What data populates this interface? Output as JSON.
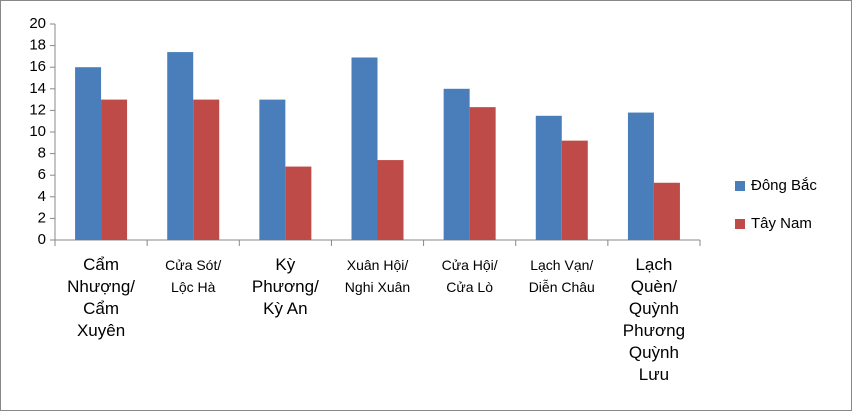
{
  "chart_data": {
    "type": "bar",
    "categories": [
      "Cẩm\nNhượng/\nCẩm\nXuyên",
      "Cửa Sót/\nLộc Hà",
      "Kỳ\nPhương/\nKỳ An",
      "Xuân Hội/\nNghi Xuân",
      "Cửa Hội/\nCửa Lò",
      "Lạch Vạn/\nDiễn Châu",
      "Lạch\nQuèn/\nQuỳnh\nPhương\nQuỳnh\nLưu"
    ],
    "series": [
      {
        "name": "Đông Bắc",
        "color": "#4a7ebb",
        "values": [
          16.0,
          17.4,
          13.0,
          16.9,
          14.0,
          11.5,
          11.8
        ]
      },
      {
        "name": "Tây Nam",
        "color": "#be4b48",
        "values": [
          13.0,
          13.0,
          6.8,
          7.4,
          12.3,
          9.2,
          5.3
        ]
      }
    ],
    "ylim": [
      0,
      20
    ],
    "yticks": [
      0,
      2,
      4,
      6,
      8,
      10,
      12,
      14,
      16,
      18,
      20
    ],
    "grid": false,
    "legend": "right"
  }
}
